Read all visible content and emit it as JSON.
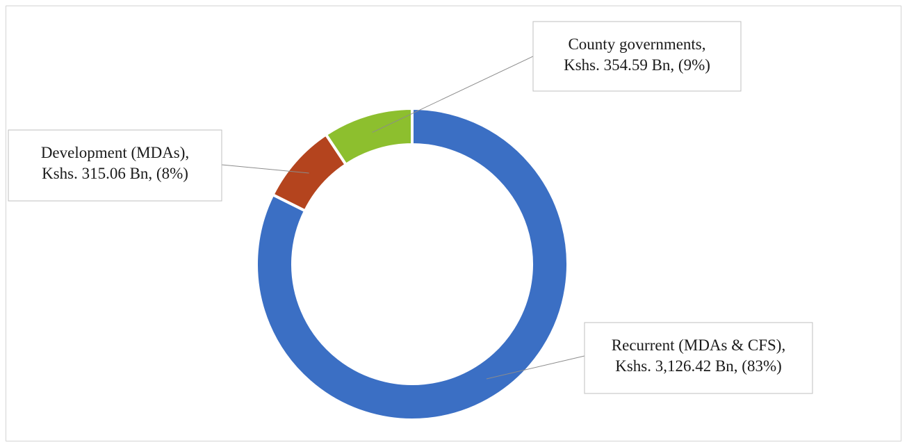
{
  "chart_data": {
    "type": "pie",
    "style": "donut",
    "title": "",
    "currency_unit": "Kshs. Bn",
    "slices": [
      {
        "name": "Recurrent (MDAs & CFS)",
        "value": 3126.42,
        "percent": 83,
        "color": "#3B6FC4",
        "label_lines": [
          "Recurrent (MDAs & CFS),",
          "Kshs. 3,126.42 Bn, (83%)"
        ]
      },
      {
        "name": "Development (MDAs)",
        "value": 315.06,
        "percent": 8,
        "color": "#B4441E",
        "label_lines": [
          "Development (MDAs),",
          "Kshs. 315.06 Bn, (8%)"
        ]
      },
      {
        "name": "County governments",
        "value": 354.59,
        "percent": 9,
        "color": "#8DBF2E",
        "label_lines": [
          "County governments,",
          "Kshs. 354.59 Bn, (9%)"
        ]
      }
    ],
    "legend": "none",
    "data_labels": "callout boxes with leader lines"
  }
}
